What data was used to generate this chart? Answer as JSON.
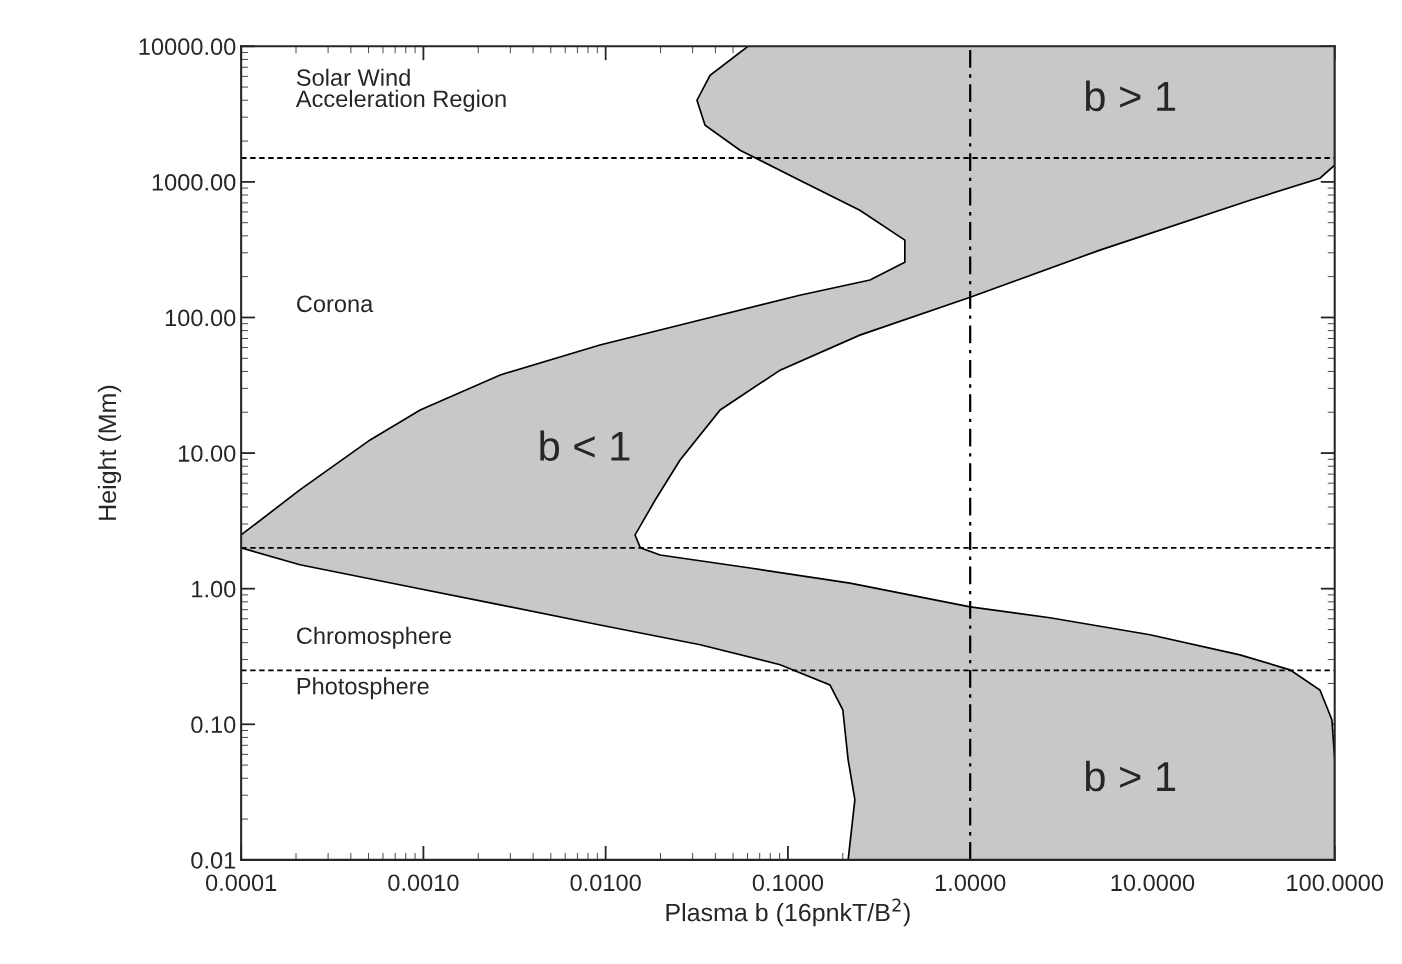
{
  "chart_data": {
    "type": "area",
    "xlabel": "Plasma b (16pnkT/B$^{2}$)",
    "ylabel": "Height (Mm)",
    "log": "xy",
    "xlim": [
      0.0001,
      100
    ],
    "ylim": [
      0.01,
      10000
    ],
    "xticks": [
      {
        "value": 0.0001,
        "label": "0.0001"
      },
      {
        "value": 0.001,
        "label": "0.0010"
      },
      {
        "value": 0.01,
        "label": "0.0100"
      },
      {
        "value": 0.1,
        "label": "0.1000"
      },
      {
        "value": 1,
        "label": "1.0000"
      },
      {
        "value": 10,
        "label": "10.0000"
      },
      {
        "value": 100,
        "label": "100.0000"
      }
    ],
    "yticks": [
      {
        "value": 0.01,
        "label": "0.01"
      },
      {
        "value": 0.1,
        "label": "0.10"
      },
      {
        "value": 1,
        "label": "1.00"
      },
      {
        "value": 10,
        "label": "10.00"
      },
      {
        "value": 100,
        "label": "100.00"
      },
      {
        "value": 1000,
        "label": "1000.00"
      },
      {
        "value": 10000,
        "label": "10000.00"
      }
    ],
    "grid": false,
    "series": [
      {
        "color": "#c8c8c8",
        "x": [
          0.0604,
          0.0374,
          0.0317,
          0.0351,
          0.0546,
          0.116,
          0.248,
          0.438,
          0.438,
          0.282,
          0.116,
          0.033,
          0.0093,
          0.00264,
          0.00096,
          0.00051,
          0.00021,
          0.0001,
          0.0001,
          0.00021,
          0.00074,
          0.00264,
          0.0093,
          0.033,
          0.0906,
          0.17,
          0.2,
          0.214,
          0.233,
          0.214,
          100,
          100,
          96.5,
          83,
          56.8,
          30.2,
          9.7,
          2.74,
          1.0,
          0.219,
          0.062,
          0.0199,
          0.0155,
          0.0145,
          0.0187,
          0.0256,
          0.0425,
          0.0906,
          0.248,
          1.0,
          5.15,
          34.3,
          83,
          100,
          100
        ],
        "values": [
          10000,
          6110,
          4000,
          2620,
          1710,
          1030,
          618,
          372,
          256,
          189,
          146,
          95.7,
          62.7,
          37.7,
          20.8,
          12.5,
          5.35,
          2.49,
          2.0,
          1.5,
          1.07,
          0.76,
          0.54,
          0.386,
          0.275,
          0.195,
          0.128,
          0.0547,
          0.0278,
          0.01,
          0.01,
          0.0547,
          0.108,
          0.179,
          0.252,
          0.325,
          0.457,
          0.61,
          0.735,
          1.1,
          1.42,
          1.77,
          2.0,
          2.49,
          4.51,
          8.9,
          20.8,
          40.9,
          74.1,
          141,
          314,
          733,
          1064,
          1327,
          10000
        ]
      }
    ],
    "ref_lines": [
      {
        "axis": "y",
        "value": 1500,
        "line_style": "dashed"
      },
      {
        "axis": "y",
        "value": 2,
        "line_style": "dashed"
      },
      {
        "axis": "y",
        "value": 0.25,
        "line_style": "dashed"
      },
      {
        "axis": "x",
        "value": 1,
        "line_style": "dashdot"
      }
    ],
    "annotations": [
      "Solar Wind\nAcceleration Region",
      "Corona",
      "Chromosphere",
      "Photosphere",
      "b > 1",
      "b < 1",
      "b > 1"
    ]
  }
}
